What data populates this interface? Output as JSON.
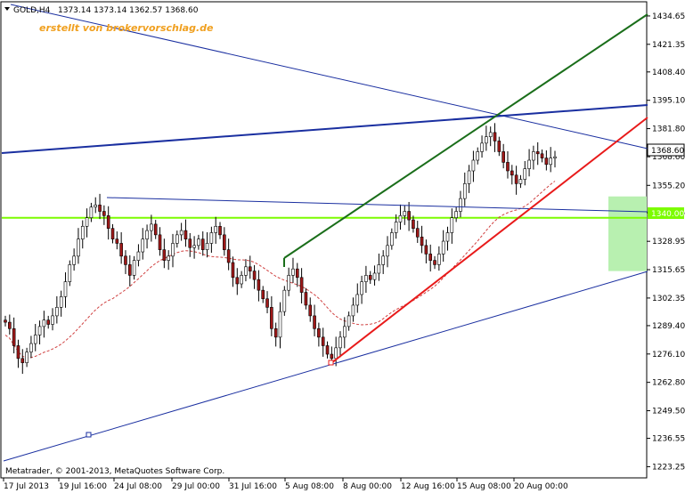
{
  "header": {
    "symbol_label": "GOLD,H4",
    "ohlc": "1373.14 1373.14 1362.57 1368.60",
    "watermark": "erstellt von brokervorschlag.de"
  },
  "footer": {
    "copyright": "Metatrader, © 2001-2013, MetaQuotes Software Corp."
  },
  "price_tags": {
    "current": "1368.60",
    "level": "1340.00"
  },
  "colors": {
    "frame": "#000000",
    "candle_up": "#000000",
    "candle_down": "#a01818",
    "trend_blue": "#1a2fa0",
    "trend_green": "#1a6e1a",
    "trend_red": "#e81a1a",
    "level_line": "#7cfc00",
    "zone_fill": "#b8f0b0",
    "moving_average": "#d04040"
  },
  "chart_data": {
    "type": "candlestick",
    "symbol": "GOLD",
    "timeframe": "H4",
    "ylim": [
      1218.0,
      1441.3
    ],
    "y_ticks": [
      "1434.65",
      "1421.35",
      "1408.40",
      "1395.10",
      "1381.80",
      "1368.60",
      "1355.20",
      "1342.35",
      "1328.95",
      "1315.65",
      "1302.35",
      "1289.40",
      "1276.10",
      "1262.80",
      "1249.50",
      "1236.55",
      "1223.25"
    ],
    "x_ticks": [
      "17 Jul 2013",
      "19 Jul 16:00",
      "24 Jul 08:00",
      "29 Jul 00:00",
      "31 Jul 16:00",
      "5 Aug 08:00",
      "8 Aug 00:00",
      "12 Aug 16:00",
      "15 Aug 08:00",
      "20 Aug 00:00"
    ],
    "current_price": 1368.6,
    "horizontal_level": 1340.0,
    "support_zone": [
      1315.0,
      1350.0
    ],
    "closes": [
      1291,
      1288,
      1280,
      1274,
      1272,
      1277,
      1281,
      1285,
      1289,
      1292,
      1290,
      1294,
      1298,
      1303,
      1310,
      1318,
      1322,
      1330,
      1336,
      1340,
      1345,
      1346,
      1343,
      1341,
      1335,
      1330,
      1328,
      1322,
      1318,
      1313,
      1320,
      1324,
      1330,
      1334,
      1337,
      1332,
      1325,
      1320,
      1322,
      1328,
      1332,
      1334,
      1330,
      1326,
      1327,
      1330,
      1325,
      1328,
      1333,
      1336,
      1332,
      1325,
      1319,
      1312,
      1309,
      1313,
      1317,
      1315,
      1311,
      1306,
      1302,
      1298,
      1288,
      1284,
      1296,
      1306,
      1313,
      1316,
      1312,
      1305,
      1299,
      1294,
      1288,
      1284,
      1280,
      1276,
      1274,
      1279,
      1284,
      1289,
      1294,
      1299,
      1304,
      1310,
      1313,
      1311,
      1314,
      1318,
      1322,
      1327,
      1333,
      1338,
      1341,
      1343,
      1339,
      1335,
      1331,
      1327,
      1323,
      1320,
      1318,
      1323,
      1329,
      1333,
      1340,
      1343,
      1349,
      1356,
      1362,
      1367,
      1371,
      1375,
      1378,
      1380,
      1376,
      1371,
      1366,
      1362,
      1360,
      1356,
      1358,
      1363,
      1367,
      1371,
      1370,
      1368,
      1365,
      1368,
      1368.6
    ]
  }
}
